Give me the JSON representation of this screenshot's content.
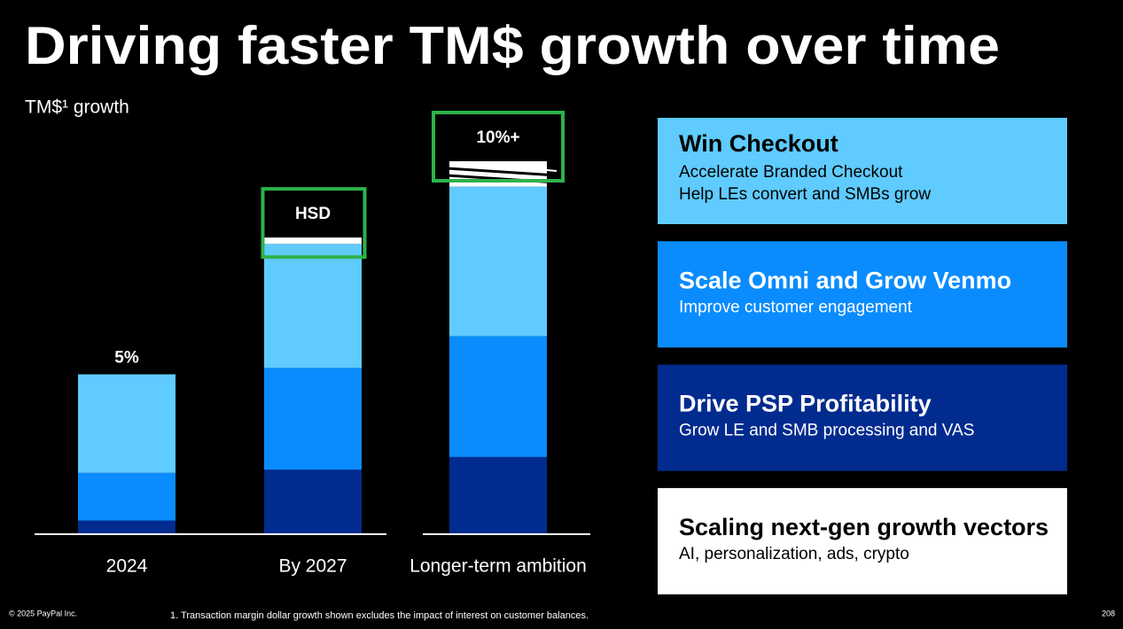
{
  "title": "Driving faster TM$ growth over time",
  "chart_data": {
    "type": "stacked_bar",
    "subtitle": "TM$¹ growth",
    "categories": [
      "2024",
      "By 2027",
      "Longer-term ambition"
    ],
    "annotations": [
      "5%",
      "HSD",
      "10%+"
    ],
    "highlight": [
      false,
      true,
      true
    ],
    "highlight_color": "#2db34a",
    "series": [
      {
        "color": "#012b8f",
        "values": [
          0.4,
          2.0,
          2.4
        ]
      },
      {
        "color": "#0a8cfe",
        "values": [
          1.5,
          3.2,
          3.8
        ]
      },
      {
        "color": "#5fcbfe",
        "values": [
          3.1,
          3.9,
          4.7
        ]
      },
      {
        "color": "#ffffff",
        "values": [
          null,
          0.2,
          0.8
        ]
      }
    ]
  },
  "panels": [
    {
      "title": "Win Checkout",
      "lines": [
        "Accelerate Branded Checkout",
        "Help LEs convert and SMBs grow"
      ],
      "color": "#5fcbfe",
      "text_color": "#000000"
    },
    {
      "title": "Scale Omni and Grow Venmo",
      "lines": [
        "Improve customer engagement"
      ],
      "color": "#0a8cfe",
      "text_color": "#ffffff"
    },
    {
      "title": "Drive PSP Profitability",
      "lines": [
        "Grow LE and SMB processing and VAS"
      ],
      "color": "#012b8f",
      "text_color": "#ffffff"
    },
    {
      "title": "Scaling next-gen growth vectors",
      "lines": [
        "AI, personalization, ads, crypto"
      ],
      "color": "#ffffff",
      "text_color": "#000000"
    }
  ],
  "footer": {
    "copyright": "© 2025 PayPal Inc.",
    "footnote": "1.  Transaction margin dollar growth shown excludes the impact of interest on customer balances.",
    "page": "208"
  }
}
